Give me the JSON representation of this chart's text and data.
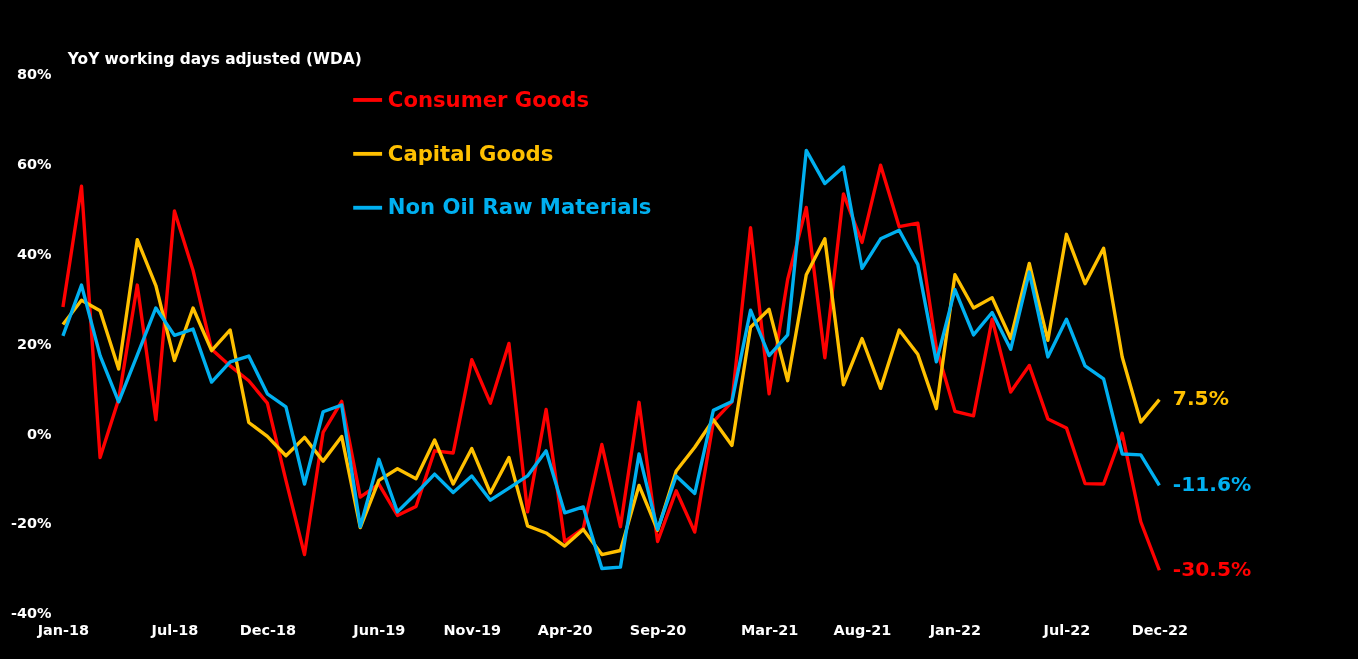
{
  "chart_data": {
    "type": "line",
    "ylabel": "YoY working days adjusted (WDA)",
    "categories": [
      "Jan-18",
      null,
      null,
      null,
      null,
      null,
      "Jul-18",
      null,
      null,
      null,
      null,
      "Dec-18",
      null,
      null,
      null,
      null,
      null,
      "Jun-19",
      null,
      null,
      null,
      null,
      "Nov-19",
      null,
      null,
      null,
      null,
      "Apr-20",
      null,
      null,
      null,
      null,
      "Sep-20",
      null,
      null,
      null,
      null,
      null,
      "Mar-21",
      null,
      null,
      null,
      null,
      "Aug-21",
      null,
      null,
      null,
      null,
      "Jan-22",
      null,
      null,
      null,
      null,
      null,
      "Jul-22",
      null,
      null,
      null,
      null,
      "Dec-22"
    ],
    "series": [
      {
        "name": "Consumer Goods",
        "color": "#ff0000",
        "values": [
          28.1,
          55.0,
          -5.4,
          7.6,
          33.0,
          3.0,
          49.5,
          36.3,
          18.7,
          15.0,
          11.7,
          6.7,
          -10.5,
          -27.0,
          0.2,
          7.1,
          -14.2,
          -11.3,
          -18.3,
          -16.3,
          -3.9,
          -4.4,
          16.4,
          6.7,
          20.0,
          -17.5,
          5.3,
          -24.1,
          -21.2,
          -2.5,
          -20.8,
          6.9,
          -24.1,
          -12.8,
          -22.0,
          2.6,
          7.0,
          45.8,
          8.8,
          34.3,
          50.3,
          16.8,
          53.3,
          42.5,
          59.7,
          46.0,
          46.8,
          19.0,
          4.9,
          3.9,
          25.4,
          9.2,
          15.1,
          3.2,
          1.2,
          -11.2,
          -11.3,
          0.0,
          -19.7,
          -30.5
        ]
      },
      {
        "name": "Capital Goods",
        "color": "#ffc000",
        "values": [
          24.2,
          29.6,
          27.3,
          14.3,
          43.1,
          32.9,
          16.2,
          27.9,
          18.4,
          23.0,
          2.4,
          -0.7,
          -5.0,
          -0.9,
          -6.2,
          -0.7,
          -21.0,
          -10.5,
          -7.9,
          -10.1,
          -1.5,
          -11.3,
          -3.4,
          -13.3,
          -5.4,
          -20.6,
          -22.2,
          -25.1,
          -21.4,
          -27.0,
          -26.1,
          -11.6,
          -21.6,
          -8.4,
          -3.1,
          3.0,
          -2.7,
          23.6,
          27.6,
          11.7,
          35.3,
          43.3,
          10.8,
          21.1,
          10.0,
          23.0,
          17.6,
          5.5,
          35.3,
          27.9,
          30.2,
          21.1,
          37.8,
          20.7,
          44.3,
          33.3,
          41.2,
          17.0,
          2.5,
          7.5
        ]
      },
      {
        "name": "Non Oil Raw Materials",
        "color": "#00b0f0",
        "values": [
          21.7,
          33.0,
          17.3,
          7.0,
          17.4,
          27.9,
          21.8,
          23.2,
          11.4,
          15.9,
          17.2,
          8.8,
          5.9,
          -11.3,
          4.8,
          6.3,
          -20.8,
          -5.8,
          -17.5,
          -13.4,
          -9.1,
          -13.2,
          -9.5,
          -14.9,
          -12.2,
          -9.5,
          -3.9,
          -17.7,
          -16.4,
          -30.1,
          -29.8,
          -4.6,
          -21.4,
          -9.5,
          -13.4,
          5.1,
          7.1,
          27.4,
          17.3,
          21.9,
          63.0,
          55.6,
          59.3,
          36.7,
          43.3,
          45.2,
          37.6,
          15.9,
          32.0,
          21.9,
          26.9,
          18.7,
          35.9,
          17.0,
          25.4,
          15.0,
          12.1,
          -4.6,
          -4.8,
          -11.6
        ]
      }
    ],
    "ylim": [
      -40,
      80
    ],
    "yticks": [
      {
        "value": -40,
        "label": "-40%"
      },
      {
        "value": -20,
        "label": "-20%"
      },
      {
        "value": 0,
        "label": "0%"
      },
      {
        "value": 20,
        "label": "20%"
      },
      {
        "value": 40,
        "label": "40%"
      },
      {
        "value": 60,
        "label": "60%"
      },
      {
        "value": 80,
        "label": "80%"
      }
    ],
    "annotations": [
      {
        "text": "-30.5%",
        "x": "Dec-22",
        "y": -30.5
      },
      {
        "text": "7.5%",
        "x": "Dec-22",
        "y": 7.5
      },
      {
        "text": "-11.6%",
        "x": "Dec-22",
        "y": -11.6
      }
    ],
    "legend": "top",
    "grid": false,
    "marker": "none",
    "line_style": "solid"
  }
}
